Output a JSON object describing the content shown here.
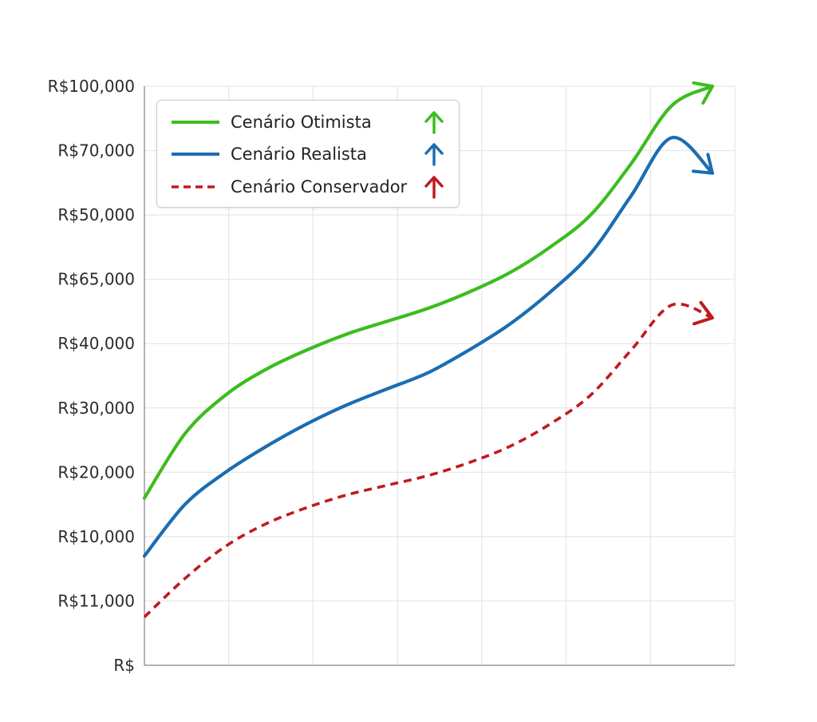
{
  "chart_data": {
    "type": "line",
    "y_tick_labels": [
      "R$",
      "R$11,000",
      "R$10,000",
      "R$20,000",
      "R$30,000",
      "R$40,000",
      "R$65,000",
      "R$50,000",
      "R$70,000",
      "R$100,000"
    ],
    "x_tick_count": 7,
    "grid": true,
    "legend_position": "top-left",
    "x": [
      0,
      0.5,
      1,
      1.5,
      2,
      2.5,
      3,
      3.5,
      4,
      4.5,
      5,
      5.5,
      6,
      6.5,
      7
    ],
    "series": [
      {
        "name": "Cenário Otimista",
        "color": "#3cbd1f",
        "style": "solid",
        "arrow_icon": "arrow-up-icon",
        "values": [
          2.6,
          3.6,
          4.2,
          4.6,
          4.9,
          5.15,
          5.35,
          5.55,
          5.8,
          6.1,
          6.5,
          7.0,
          7.8,
          8.7,
          9.0
        ]
      },
      {
        "name": "Cenário Realista",
        "color": "#1b6db3",
        "style": "solid",
        "arrow_icon": "arrow-up-icon",
        "values": [
          1.7,
          2.5,
          3.0,
          3.4,
          3.75,
          4.05,
          4.3,
          4.55,
          4.9,
          5.3,
          5.8,
          6.4,
          7.3,
          8.2,
          7.65
        ]
      },
      {
        "name": "Cenário Conservador",
        "color": "#c01a1f",
        "style": "dashed",
        "arrow_icon": "arrow-up-icon",
        "values": [
          0.75,
          1.35,
          1.85,
          2.2,
          2.45,
          2.65,
          2.8,
          2.95,
          3.15,
          3.4,
          3.75,
          4.2,
          4.9,
          5.6,
          5.4
        ]
      }
    ]
  }
}
